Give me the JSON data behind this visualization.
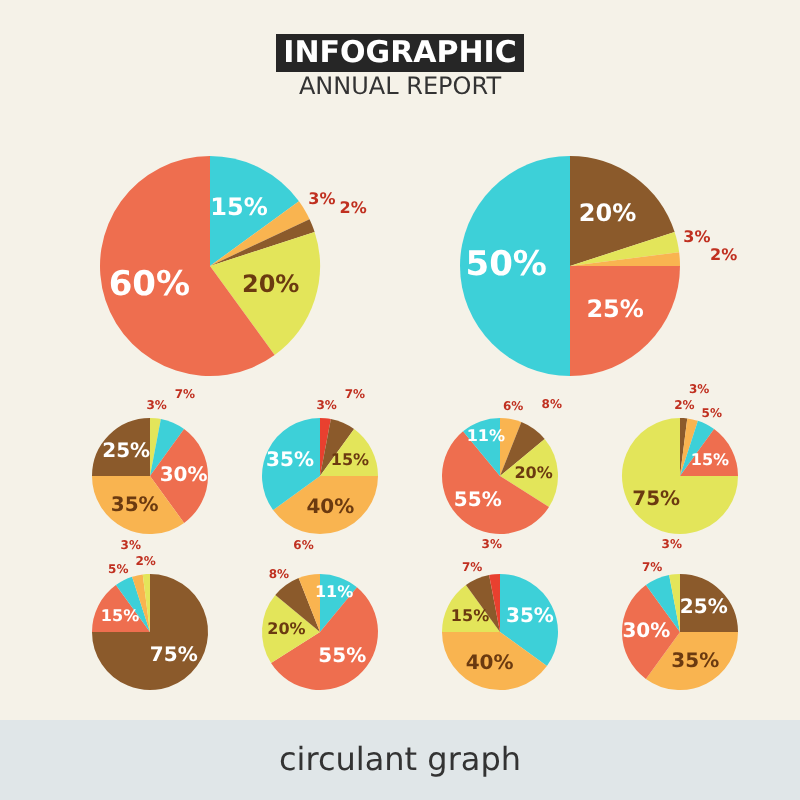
{
  "chart_data": [
    {
      "type": "pie",
      "title": "INFOGRAPHIC",
      "subtitle": "ANNUAL REPORT",
      "annotations": [
        "circulant graph"
      ],
      "categories": [
        null,
        null,
        null,
        null,
        null
      ],
      "values": [
        15,
        3,
        2,
        20,
        60
      ],
      "value_labels": [
        "15%",
        "3%",
        "2%",
        "20%",
        "60%"
      ],
      "colors": [
        "#3dd0d8",
        "#f9b450",
        "#8b5a2b",
        "#e3e55a",
        "#ee6e4f"
      ],
      "legend": false
    },
    {
      "type": "pie",
      "categories": [
        null,
        null,
        null,
        null,
        null
      ],
      "values": [
        20,
        3,
        2,
        25,
        50
      ],
      "value_labels": [
        "20%",
        "3%",
        "2%",
        "25%",
        "50%"
      ],
      "colors": [
        "#8b5a2b",
        "#e3e55a",
        "#f9b450",
        "#ee6e4f",
        "#3dd0d8"
      ],
      "legend": false
    },
    {
      "type": "pie",
      "categories": [
        null,
        null,
        null,
        null,
        null
      ],
      "values": [
        3,
        7,
        30,
        35,
        25
      ],
      "value_labels": [
        "3%",
        "7%",
        "30%",
        "35%",
        "25%"
      ],
      "colors": [
        "#e3e55a",
        "#3dd0d8",
        "#ee6e4f",
        "#f9b450",
        "#8b5a2b"
      ],
      "legend": false
    },
    {
      "type": "pie",
      "categories": [
        null,
        null,
        null,
        null,
        null
      ],
      "values": [
        3,
        7,
        15,
        40,
        35
      ],
      "value_labels": [
        "3%",
        "7%",
        "15%",
        "40%",
        "35%"
      ],
      "colors": [
        "#e8402f",
        "#8b5a2b",
        "#e3e55a",
        "#f9b450",
        "#3dd0d8"
      ],
      "legend": false
    },
    {
      "type": "pie",
      "categories": [
        null,
        null,
        null,
        null,
        null
      ],
      "values": [
        6,
        8,
        20,
        55,
        11
      ],
      "value_labels": [
        "6%",
        "8%",
        "20%",
        "55%",
        "11%"
      ],
      "colors": [
        "#f9b450",
        "#8b5a2b",
        "#e3e55a",
        "#ee6e4f",
        "#3dd0d8"
      ],
      "legend": false
    },
    {
      "type": "pie",
      "categories": [
        null,
        null,
        null,
        null,
        null
      ],
      "values": [
        2,
        3,
        5,
        15,
        75
      ],
      "value_labels": [
        "2%",
        "3%",
        "5%",
        "15%",
        "75%"
      ],
      "colors": [
        "#8b5a2b",
        "#f9b450",
        "#3dd0d8",
        "#ee6e4f",
        "#e3e55a"
      ],
      "legend": false
    },
    {
      "type": "pie",
      "categories": [
        null,
        null,
        null,
        null,
        null
      ],
      "values": [
        75,
        15,
        5,
        3,
        2
      ],
      "value_labels": [
        "75%",
        "15%",
        "5%",
        "3%",
        "2%"
      ],
      "colors": [
        "#8b5a2b",
        "#ee6e4f",
        "#3dd0d8",
        "#f9b450",
        "#e3e55a"
      ],
      "legend": false
    },
    {
      "type": "pie",
      "categories": [
        null,
        null,
        null,
        null,
        null
      ],
      "values": [
        11,
        55,
        20,
        8,
        6
      ],
      "value_labels": [
        "11%",
        "55%",
        "20%",
        "8%",
        "6%"
      ],
      "colors": [
        "#3dd0d8",
        "#ee6e4f",
        "#e3e55a",
        "#8b5a2b",
        "#f9b450"
      ],
      "legend": false
    },
    {
      "type": "pie",
      "categories": [
        null,
        null,
        null,
        null,
        null
      ],
      "values": [
        35,
        40,
        15,
        7,
        3
      ],
      "value_labels": [
        "35%",
        "40%",
        "15%",
        "7%",
        "3%"
      ],
      "colors": [
        "#3dd0d8",
        "#f9b450",
        "#e3e55a",
        "#8b5a2b",
        "#e8402f"
      ],
      "legend": false
    },
    {
      "type": "pie",
      "categories": [
        null,
        null,
        null,
        null,
        null
      ],
      "values": [
        25,
        35,
        30,
        7,
        3
      ],
      "value_labels": [
        "25%",
        "35%",
        "30%",
        "7%",
        "3%"
      ],
      "colors": [
        "#8b5a2b",
        "#f9b450",
        "#ee6e4f",
        "#3dd0d8",
        "#e3e55a"
      ],
      "legend": false
    }
  ]
}
